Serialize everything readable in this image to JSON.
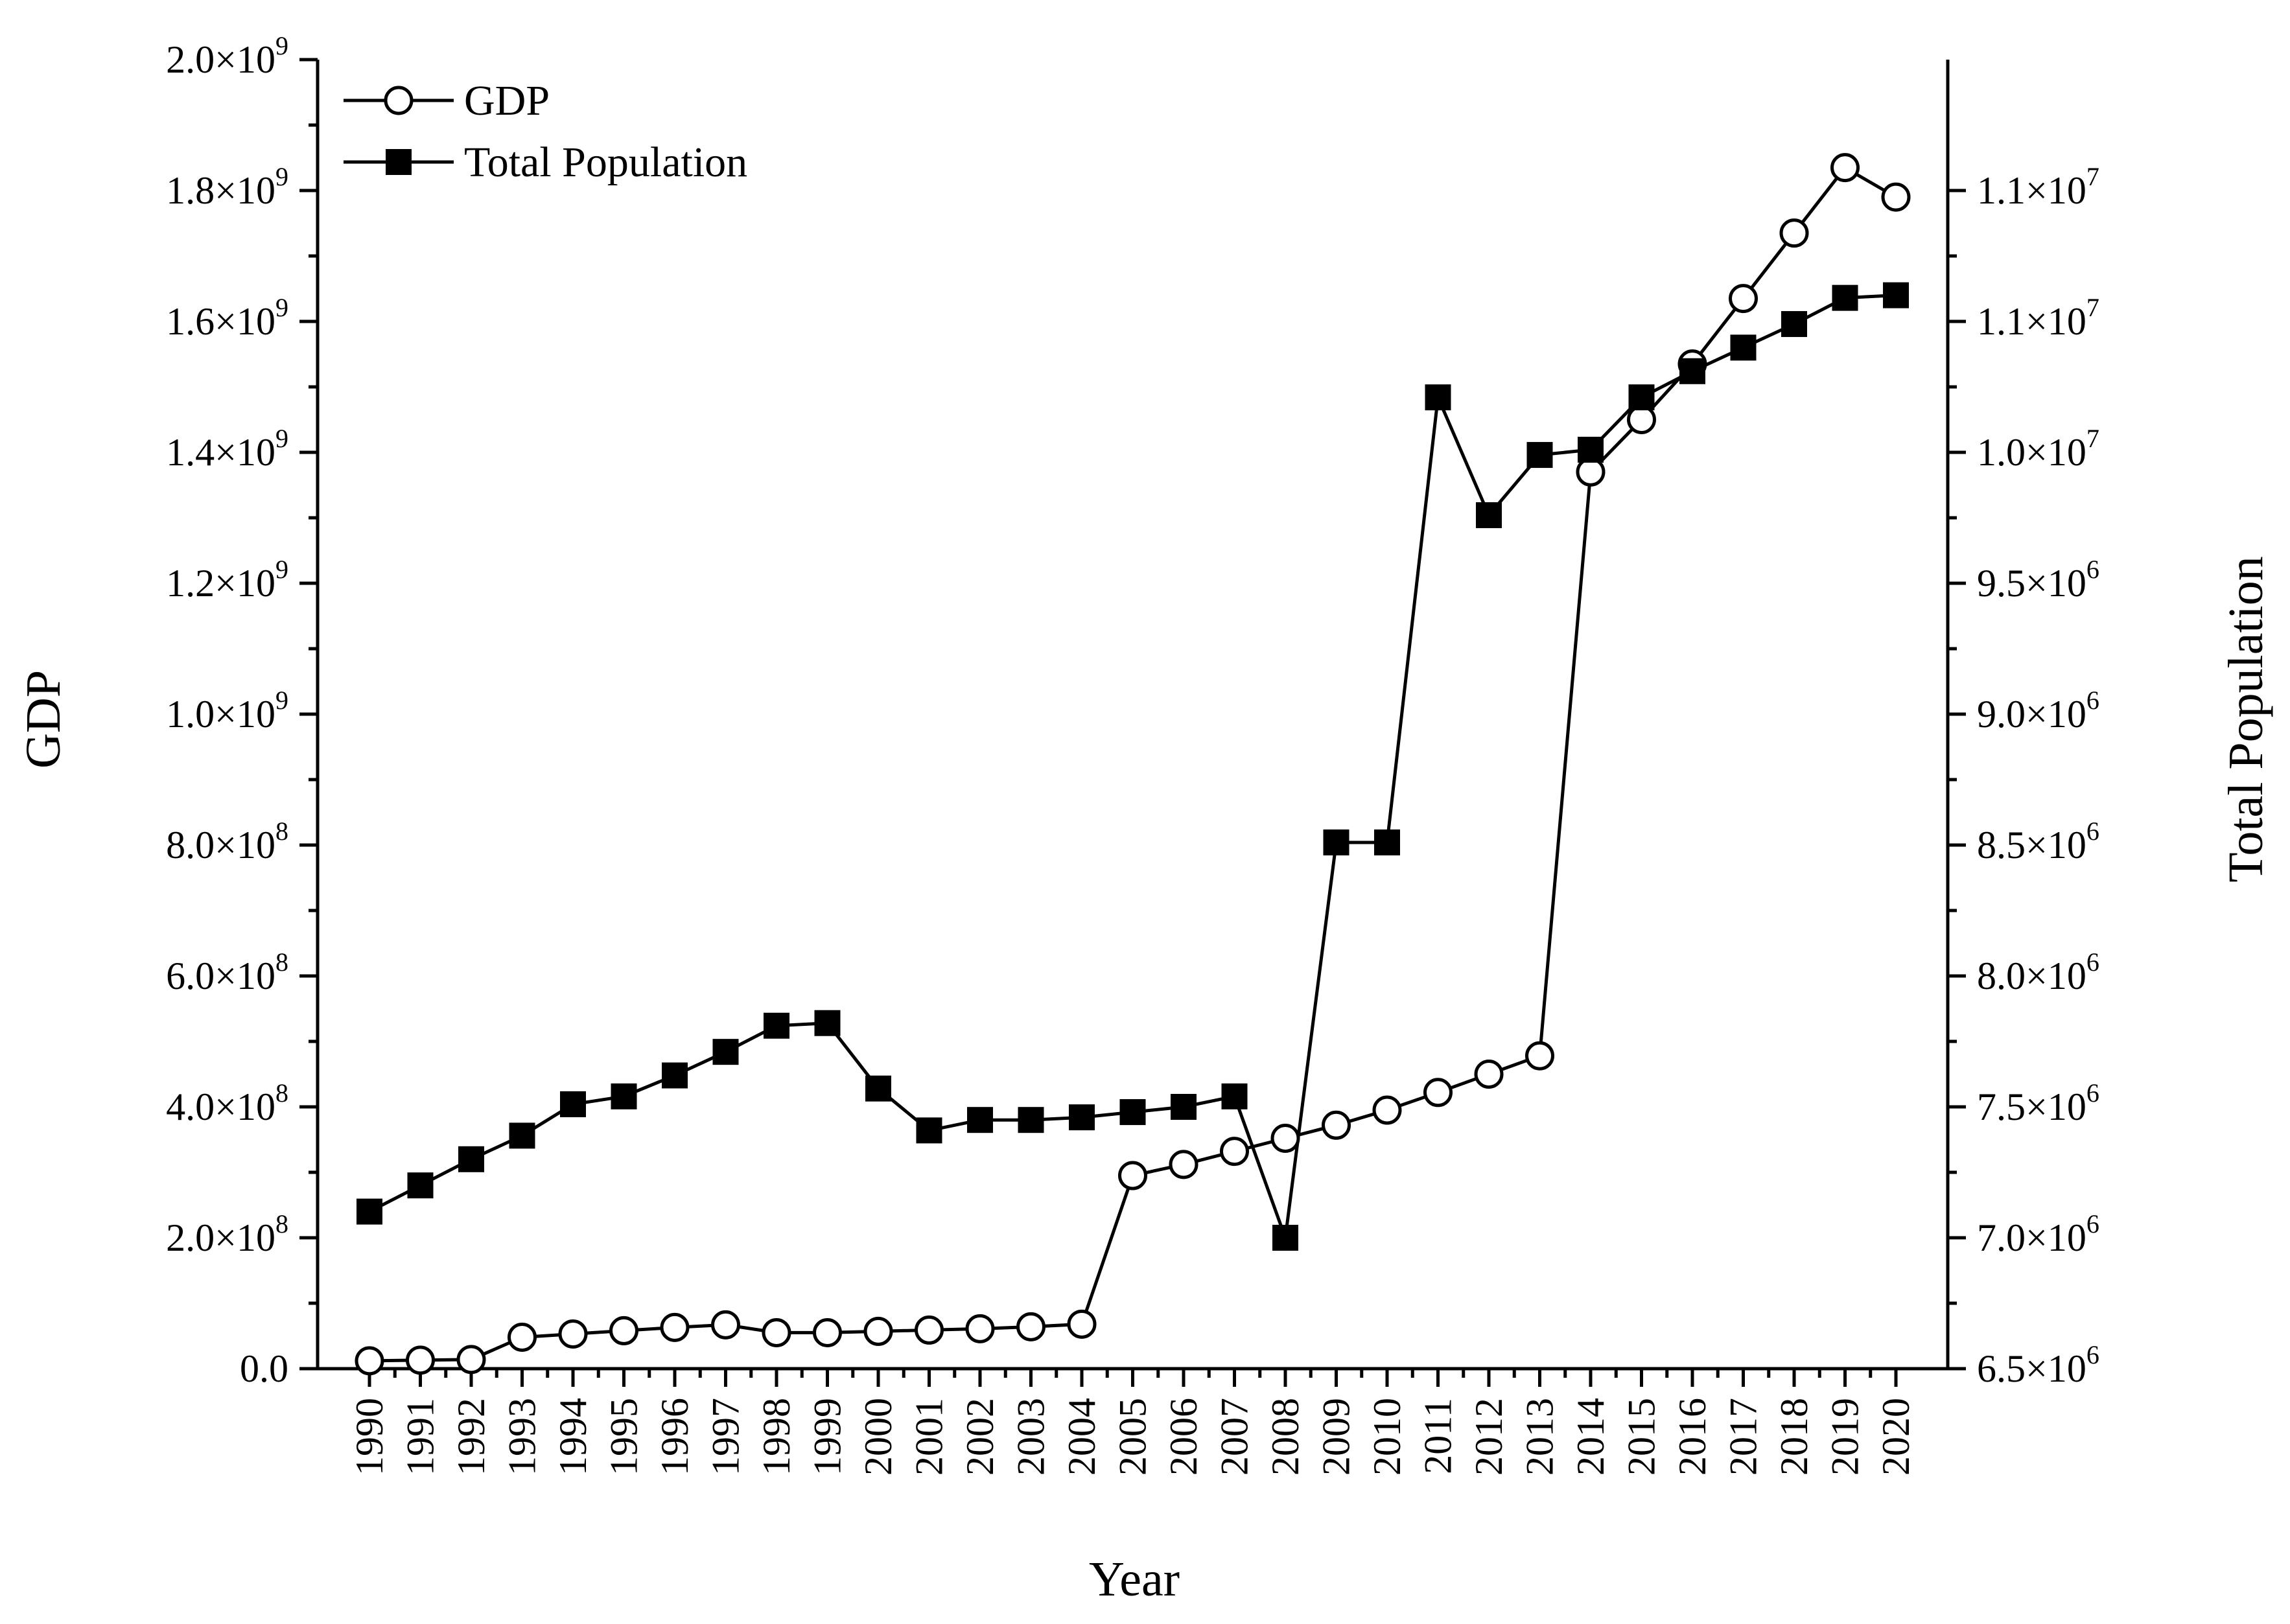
{
  "chart_data": {
    "type": "line",
    "xlabel": "Year",
    "ylabel_left": "GDP",
    "ylabel_right": "Total Population",
    "x": [
      1990,
      1991,
      1992,
      1993,
      1994,
      1995,
      1996,
      1997,
      1998,
      1999,
      2000,
      2001,
      2002,
      2003,
      2004,
      2005,
      2006,
      2007,
      2008,
      2009,
      2010,
      2011,
      2012,
      2013,
      2014,
      2015,
      2016,
      2017,
      2018,
      2019,
      2020
    ],
    "x_tick_labels": [
      "1990",
      "1991",
      "1992",
      "1993",
      "1994",
      "1995",
      "1996",
      "1997",
      "1998",
      "1999",
      "2000",
      "2001",
      "2002",
      "2003",
      "2004",
      "2005",
      "2006",
      "2007",
      "2008",
      "2009",
      "2010",
      "2011",
      "2012",
      "2013",
      "2014",
      "2015",
      "2016",
      "2017",
      "2018",
      "2019",
      "2020"
    ],
    "left_axis": {
      "ylim": [
        0,
        2000000000
      ],
      "ticks": [
        {
          "value": 0,
          "mantissa": "0.0",
          "exp": ""
        },
        {
          "value": 200000000,
          "mantissa": "2.0×10",
          "exp": "8"
        },
        {
          "value": 400000000,
          "mantissa": "4.0×10",
          "exp": "8"
        },
        {
          "value": 600000000,
          "mantissa": "6.0×10",
          "exp": "8"
        },
        {
          "value": 800000000,
          "mantissa": "8.0×10",
          "exp": "8"
        },
        {
          "value": 1000000000,
          "mantissa": "1.0×10",
          "exp": "9"
        },
        {
          "value": 1200000000,
          "mantissa": "1.2×10",
          "exp": "9"
        },
        {
          "value": 1400000000,
          "mantissa": "1.4×10",
          "exp": "9"
        },
        {
          "value": 1600000000,
          "mantissa": "1.6×10",
          "exp": "9"
        },
        {
          "value": 1800000000,
          "mantissa": "1.8×10",
          "exp": "9"
        },
        {
          "value": 2000000000,
          "mantissa": "2.0×10",
          "exp": "9"
        }
      ]
    },
    "right_axis": {
      "ylim": [
        6500000,
        11500000
      ],
      "ticks": [
        {
          "value": 6500000,
          "mantissa": "6.5×10",
          "exp": "6"
        },
        {
          "value": 7000000,
          "mantissa": "7.0×10",
          "exp": "6"
        },
        {
          "value": 7500000,
          "mantissa": "7.5×10",
          "exp": "6"
        },
        {
          "value": 8000000,
          "mantissa": "8.0×10",
          "exp": "6"
        },
        {
          "value": 8500000,
          "mantissa": "8.5×10",
          "exp": "6"
        },
        {
          "value": 9000000,
          "mantissa": "9.0×10",
          "exp": "6"
        },
        {
          "value": 9500000,
          "mantissa": "9.5×10",
          "exp": "6"
        },
        {
          "value": 10000000,
          "mantissa": "1.0×10",
          "exp": "7"
        },
        {
          "value": 10500000,
          "mantissa": "1.1×10",
          "exp": "7"
        },
        {
          "value": 11000000,
          "mantissa": "1.1×10",
          "exp": "7"
        }
      ]
    },
    "series": [
      {
        "name": "GDP",
        "axis": "left",
        "marker": "open-circle",
        "values": [
          12000000,
          13000000,
          14000000,
          48000000,
          53000000,
          58000000,
          63000000,
          67000000,
          55000000,
          55000000,
          57000000,
          59000000,
          61000000,
          64000000,
          68000000,
          295000000,
          312000000,
          332000000,
          352000000,
          372000000,
          395000000,
          422000000,
          450000000,
          478000000,
          1370000000,
          1450000000,
          1535000000,
          1635000000,
          1735000000,
          1835000000,
          1790000000
        ]
      },
      {
        "name": "Total Population",
        "axis": "right",
        "marker": "filled-square",
        "values": [
          7100000,
          7200000,
          7300000,
          7390000,
          7510000,
          7540000,
          7620000,
          7710000,
          7810000,
          7820000,
          7570000,
          7410000,
          7450000,
          7450000,
          7460000,
          7480000,
          7500000,
          7540000,
          7000000,
          8510000,
          8510000,
          10210000,
          9760000,
          9990000,
          10010000,
          10210000,
          10310000,
          10400000,
          10490000,
          10590000,
          10600000
        ]
      }
    ],
    "legend": {
      "position": "top-left",
      "entries": [
        "GDP",
        "Total Population"
      ]
    }
  }
}
